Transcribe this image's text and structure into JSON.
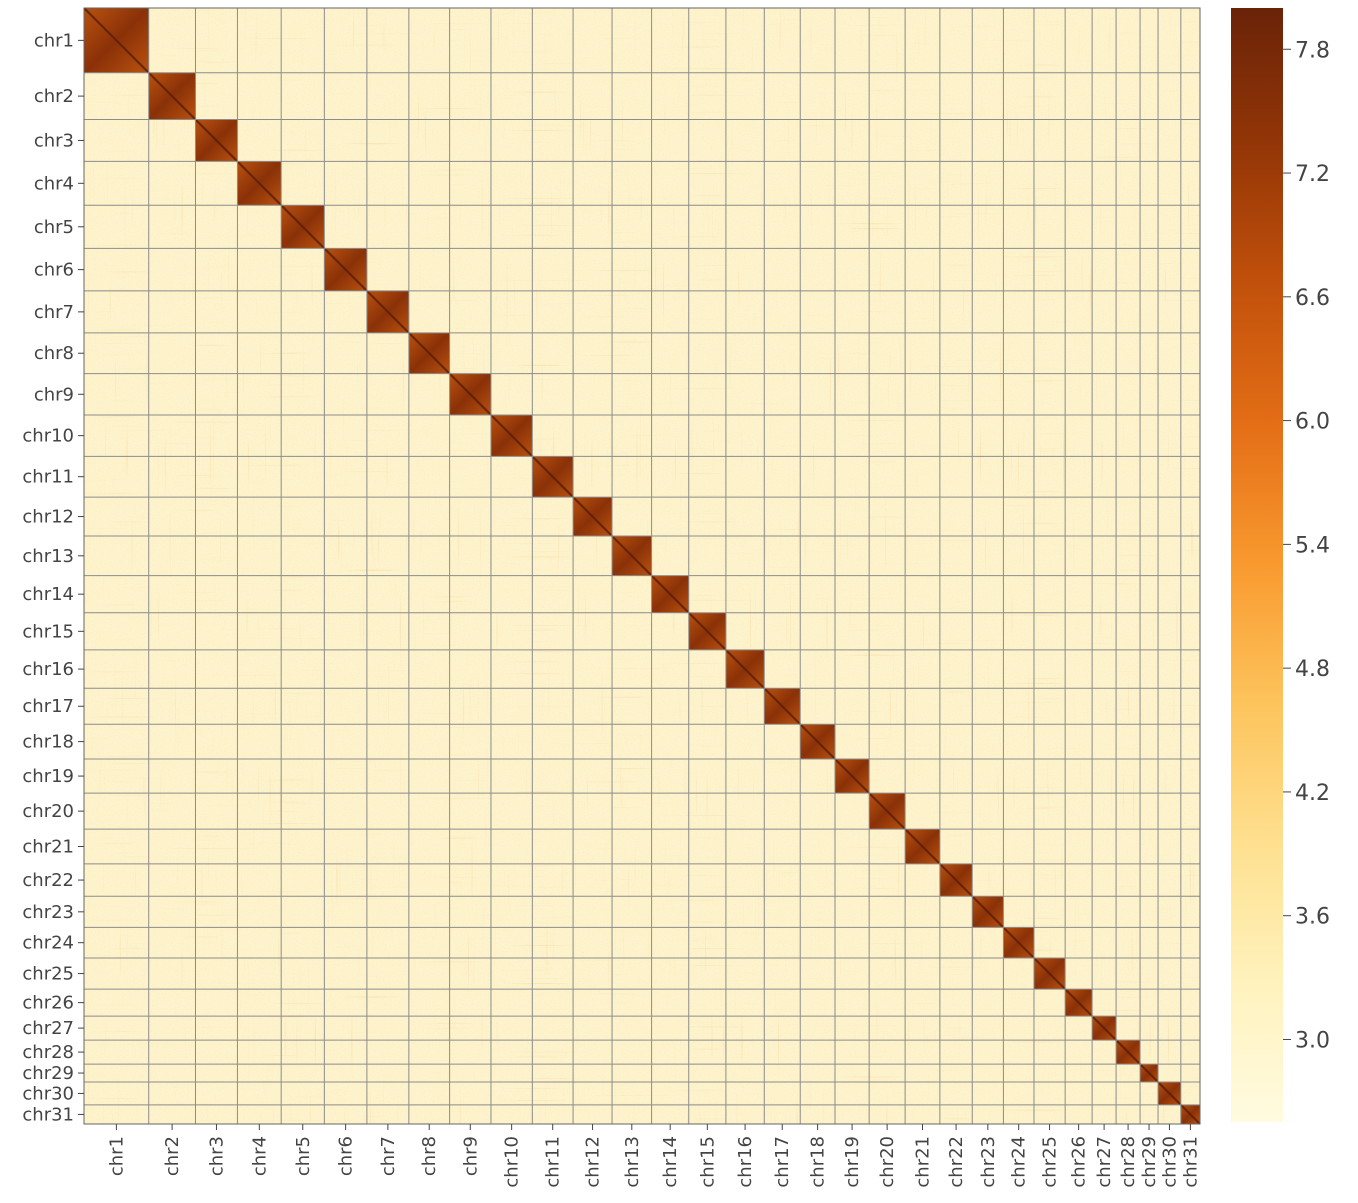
{
  "chart_data": {
    "type": "heatmap",
    "title": "",
    "xlabel": "",
    "ylabel": "",
    "chromosomes": [
      {
        "name": "chr1",
        "length": 10.8
      },
      {
        "name": "chr2",
        "length": 7.8
      },
      {
        "name": "chr3",
        "length": 7.0
      },
      {
        "name": "chr4",
        "length": 7.3
      },
      {
        "name": "chr5",
        "length": 7.2
      },
      {
        "name": "chr6",
        "length": 7.1
      },
      {
        "name": "chr7",
        "length": 7.0
      },
      {
        "name": "chr8",
        "length": 6.8
      },
      {
        "name": "chr9",
        "length": 6.9
      },
      {
        "name": "chr10",
        "length": 6.9
      },
      {
        "name": "chr11",
        "length": 6.8
      },
      {
        "name": "chr12",
        "length": 6.5
      },
      {
        "name": "chr13",
        "length": 6.6
      },
      {
        "name": "chr14",
        "length": 6.2
      },
      {
        "name": "chr15",
        "length": 6.2
      },
      {
        "name": "chr16",
        "length": 6.4
      },
      {
        "name": "chr17",
        "length": 6.0
      },
      {
        "name": "chr18",
        "length": 5.8
      },
      {
        "name": "chr19",
        "length": 5.7
      },
      {
        "name": "chr20",
        "length": 6.0
      },
      {
        "name": "chr21",
        "length": 5.8
      },
      {
        "name": "chr22",
        "length": 5.4
      },
      {
        "name": "chr23",
        "length": 5.2
      },
      {
        "name": "chr24",
        "length": 5.1
      },
      {
        "name": "chr25",
        "length": 5.2
      },
      {
        "name": "chr26",
        "length": 4.5
      },
      {
        "name": "chr27",
        "length": 4.0
      },
      {
        "name": "chr28",
        "length": 4.0
      },
      {
        "name": "chr29",
        "length": 3.0
      },
      {
        "name": "chr30",
        "length": 3.8
      },
      {
        "name": "chr31",
        "length": 3.2
      }
    ],
    "colorbar": {
      "min": 2.6,
      "max": 8.0,
      "ticks": [
        "3.0",
        "3.6",
        "4.2",
        "4.8",
        "5.4",
        "6.0",
        "6.6",
        "7.2",
        "7.8"
      ],
      "colors": [
        "#fffbe0",
        "#fff2bd",
        "#fee08f",
        "#fdc45c",
        "#f99a2f",
        "#e46e16",
        "#c2510b",
        "#943607",
        "#6a2308"
      ]
    },
    "cell_colors": {
      "background": "#fdf3cc",
      "diagonal": "#8a3108",
      "grid_line": "#8c8c8c"
    }
  }
}
